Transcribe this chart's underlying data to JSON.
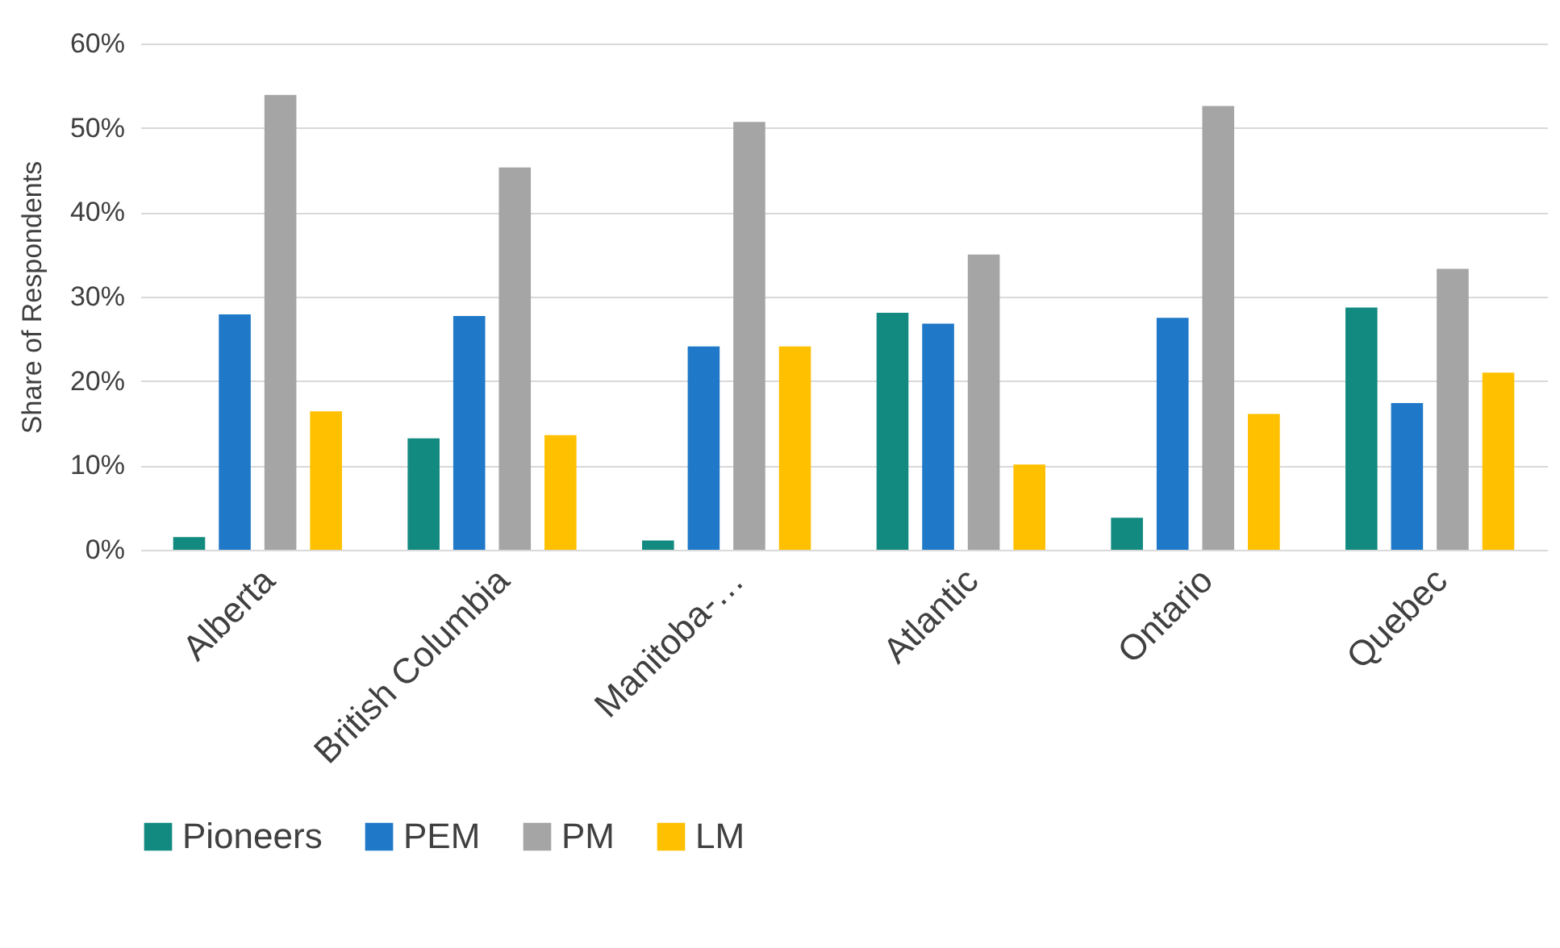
{
  "chart_data": {
    "type": "bar",
    "ylabel": "Share of Respondents",
    "categories": [
      "Alberta",
      "British Columbia",
      "Manitoba-…",
      "Atlantic",
      "Ontario",
      "Quebec"
    ],
    "series": [
      {
        "name": "Pioneers",
        "color": "#138a80",
        "values": [
          1.5,
          13.2,
          1.1,
          28.1,
          3.8,
          28.7
        ]
      },
      {
        "name": "PEM",
        "color": "#1f78c8",
        "values": [
          27.9,
          27.7,
          24.1,
          26.8,
          27.5,
          17.4
        ]
      },
      {
        "name": "PM",
        "color": "#a5a5a5",
        "values": [
          53.9,
          45.3,
          50.7,
          35.0,
          52.6,
          33.3
        ]
      },
      {
        "name": "LM",
        "color": "#ffc000",
        "values": [
          16.4,
          13.6,
          24.1,
          10.1,
          16.1,
          21.0
        ]
      }
    ],
    "ylim": [
      0,
      60
    ],
    "yticks": [
      {
        "value": 0,
        "label": "0%"
      },
      {
        "value": 10,
        "label": "10%"
      },
      {
        "value": 20,
        "label": "20%"
      },
      {
        "value": 30,
        "label": "30%"
      },
      {
        "value": 40,
        "label": "40%"
      },
      {
        "value": 50,
        "label": "50%"
      },
      {
        "value": 60,
        "label": "60%"
      }
    ],
    "grid": "y",
    "legend": "bottom"
  }
}
